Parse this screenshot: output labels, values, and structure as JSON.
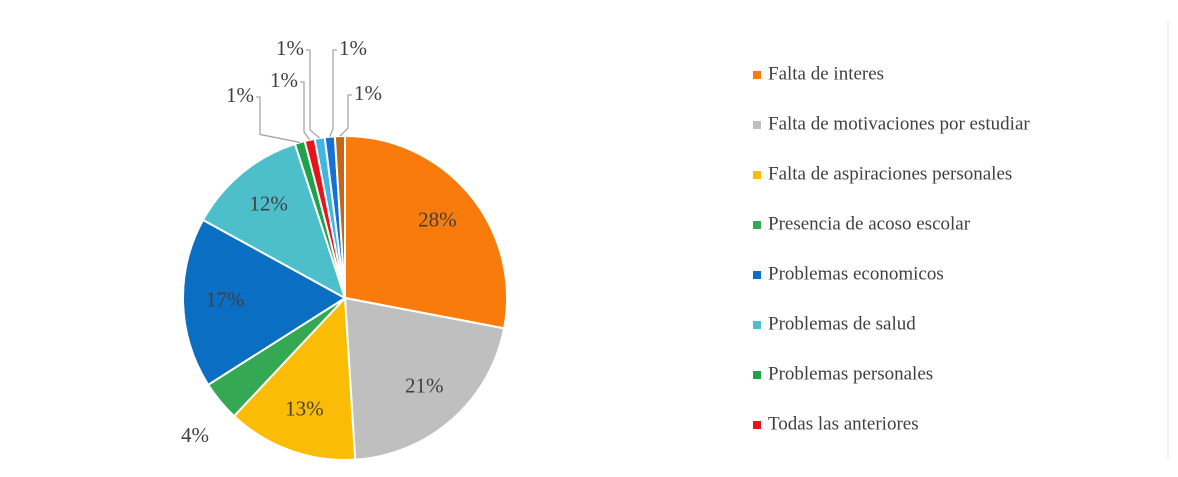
{
  "chart_data": {
    "type": "pie",
    "categories": [
      "Falta de interes",
      "Falta de motivaciones por estudiar",
      "Falta de aspiraciones personales",
      "Presencia de acoso escolar",
      "Problemas economicos",
      "Problemas de salud",
      "Problemas personales",
      "Todas las anteriores",
      null,
      null,
      null
    ],
    "values": [
      28,
      21,
      13,
      4,
      17,
      12,
      1,
      1,
      1,
      1,
      1
    ],
    "value_labels": [
      "28%",
      "21%",
      "13%",
      "4%",
      "17%",
      "12%",
      "1%",
      "1%",
      "1%",
      "1%",
      "1%"
    ],
    "colors": [
      "#f97b0b",
      "#bfbfbf",
      "#fbbc05",
      "#34a853",
      "#0a6fc2",
      "#4cbfca",
      "#1fa34a",
      "#e8141b",
      "#3fb7e0",
      "#1a6fd4",
      "#c5651a"
    ],
    "legend": "right"
  }
}
